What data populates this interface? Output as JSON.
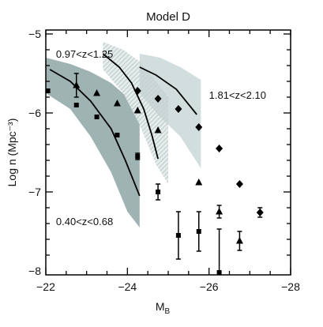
{
  "chart_data": {
    "type": "scatter",
    "title": "Model D",
    "xlabel": "M_B",
    "xlabel_main": "M",
    "xlabel_sub": "B",
    "ylabel": "Log n (Mpc⁻³)",
    "xlim": [
      -22,
      -28
    ],
    "ylim": [
      -8.05,
      -4.95
    ],
    "xticks": [
      -22,
      -24,
      -26,
      -28
    ],
    "xtick_labels": [
      "−22",
      "−24",
      "−26",
      "−28"
    ],
    "yticks": [
      -5,
      -6,
      -7,
      -8
    ],
    "ytick_labels": [
      "−5",
      "−6",
      "−7",
      "−8"
    ],
    "grid": false,
    "legend": "none",
    "annotations": [
      {
        "text": "0.97<z<1.25",
        "x": -22.25,
        "y": -5.3
      },
      {
        "text": "1.81<z<2.10",
        "x": -26.0,
        "y": -5.82
      },
      {
        "text": "0.40<z<0.68",
        "x": -22.25,
        "y": -7.42
      }
    ],
    "colors": {
      "band_low": "#8fa6a6",
      "band_mid": "#aebfbf",
      "band_high": "#c3d2d2",
      "hatch": "#b8c6c6",
      "ink": "#000000"
    },
    "series": [
      {
        "label": "0.40<z<0.68",
        "marker": "square",
        "points": [
          {
            "x": -22.05,
            "y": -5.72
          },
          {
            "x": -22.75,
            "y": -5.9
          },
          {
            "x": -23.25,
            "y": -6.05
          },
          {
            "x": -23.75,
            "y": -6.28
          },
          {
            "x": -24.25,
            "y": -6.55,
            "yerr": 0.04
          },
          {
            "x": -24.75,
            "y": -7.0,
            "yerr": 0.1
          },
          {
            "x": -25.25,
            "y": -7.55,
            "yerr": 0.3
          },
          {
            "x": -25.75,
            "y": -7.5,
            "yerr": 0.25
          },
          {
            "x": -26.25,
            "y": -8.02,
            "yerr_up": 0.55
          }
        ],
        "model_curve": {
          "x": [
            -22.1,
            -22.6,
            -23.1,
            -23.6,
            -23.95,
            -24.3
          ],
          "y": [
            -5.45,
            -5.6,
            -5.85,
            -6.2,
            -6.6,
            -7.05
          ]
        },
        "model_band": {
          "x": [
            -22.0,
            -22.6,
            -23.1,
            -23.6,
            -24.0,
            -24.3
          ],
          "lower": [
            -5.75,
            -5.95,
            -6.3,
            -6.75,
            -7.25,
            -7.45
          ],
          "upper": [
            -5.3,
            -5.38,
            -5.48,
            -5.62,
            -5.8,
            -6.0
          ]
        }
      },
      {
        "label": "0.97<z<1.25",
        "marker": "triangle",
        "points": [
          {
            "x": -22.75,
            "y": -5.65,
            "yerr": 0.15
          },
          {
            "x": -23.25,
            "y": -5.75
          },
          {
            "x": -23.75,
            "y": -5.88
          },
          {
            "x": -24.25,
            "y": -5.97
          },
          {
            "x": -24.75,
            "y": -6.22
          },
          {
            "x": -25.75,
            "y": -6.88
          },
          {
            "x": -26.25,
            "y": -7.25,
            "yerr": 0.08
          },
          {
            "x": -26.75,
            "y": -7.62,
            "yerr": 0.12
          }
        ],
        "model_curve": {
          "x": [
            -23.4,
            -23.8,
            -24.1,
            -24.4,
            -24.6,
            -24.75
          ],
          "y": [
            -5.25,
            -5.42,
            -5.62,
            -5.95,
            -6.28,
            -6.58
          ]
        },
        "model_band": {
          "x": [
            -23.4,
            -23.9,
            -24.3,
            -24.7,
            -25.0
          ],
          "lower": [
            -5.45,
            -5.75,
            -6.15,
            -6.65,
            -6.9
          ],
          "upper": [
            -5.1,
            -5.2,
            -5.35,
            -5.6,
            -5.8
          ]
        }
      },
      {
        "label": "1.81<z<2.10",
        "marker": "diamond",
        "points": [
          {
            "x": -24.25,
            "y": -5.72
          },
          {
            "x": -24.75,
            "y": -5.82
          },
          {
            "x": -25.25,
            "y": -5.95
          },
          {
            "x": -25.75,
            "y": -6.18
          },
          {
            "x": -26.25,
            "y": -6.45
          },
          {
            "x": -26.75,
            "y": -6.9
          },
          {
            "x": -27.25,
            "y": -7.26,
            "yerr": 0.06
          }
        ],
        "model_curve": {
          "x": [
            -24.3,
            -24.7,
            -25.2,
            -25.7
          ],
          "y": [
            -5.42,
            -5.52,
            -5.7,
            -6.02
          ]
        },
        "model_band": {
          "x": [
            -24.3,
            -24.8,
            -25.3,
            -25.8
          ],
          "lower": [
            -5.75,
            -6.05,
            -6.3,
            -6.7
          ],
          "upper": [
            -5.25,
            -5.3,
            -5.42,
            -5.58
          ]
        }
      }
    ]
  }
}
